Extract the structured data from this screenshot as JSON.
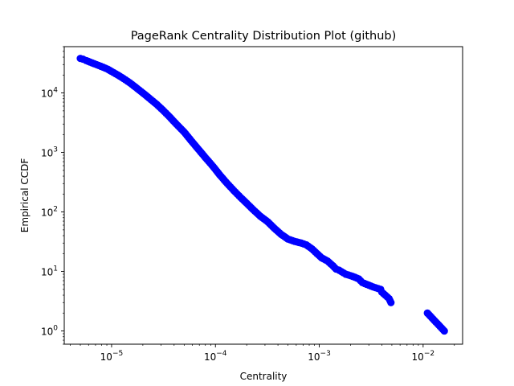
{
  "chart_data": {
    "type": "scatter",
    "title": "PageRank Centrality Distribution Plot (github)",
    "xlabel": "Centrality",
    "ylabel": "Empirical CCDF",
    "xscale": "log",
    "yscale": "log",
    "xlim": [
      3.5e-06,
      0.024
    ],
    "ylim": [
      0.6,
      60000
    ],
    "grid": false,
    "marker_color": "#0000ff",
    "x_ticks": [
      {
        "value": 1e-05,
        "base": "10",
        "exp": "−5"
      },
      {
        "value": 0.0001,
        "base": "10",
        "exp": "−4"
      },
      {
        "value": 0.001,
        "base": "10",
        "exp": "−3"
      },
      {
        "value": 0.01,
        "base": "10",
        "exp": "−2"
      }
    ],
    "y_ticks": [
      {
        "value": 1,
        "base": "10",
        "exp": "0"
      },
      {
        "value": 10,
        "base": "10",
        "exp": "1"
      },
      {
        "value": 100,
        "base": "10",
        "exp": "2"
      },
      {
        "value": 1000,
        "base": "10",
        "exp": "3"
      },
      {
        "value": 10000,
        "base": "10",
        "exp": "4"
      }
    ],
    "series": [
      {
        "x": [
          5e-06,
          5.3e-06,
          5.7e-06,
          6.2e-06,
          6.8e-06,
          7.5e-06,
          8.3e-06,
          9.2e-06,
          1e-05,
          1.15e-05,
          1.3e-05,
          1.5e-05,
          1.7e-05,
          2e-05,
          2.3e-05,
          2.7e-05,
          3.1e-05,
          3.6e-05,
          4.2e-05,
          5e-05,
          5.8e-05,
          6.8e-05,
          8e-05,
          9.5e-05,
          0.00011,
          0.00013,
          0.00015,
          0.000175,
          0.0002,
          0.00023,
          0.00027,
          0.00032,
          0.00037,
          0.00043,
          0.0005,
          0.00058,
          0.00067,
          0.00075,
          0.00085,
          0.00095,
          0.00105,
          0.0012,
          0.00135,
          0.00145,
          0.00155,
          0.0018,
          0.002,
          0.0022,
          0.0024,
          0.0026,
          0.0033,
          0.0039,
          0.004,
          0.0047,
          0.0049,
          0.011,
          0.016
        ],
        "y": [
          38000,
          37000,
          35000,
          33000,
          31000,
          29000,
          27000,
          25000,
          23000,
          20000,
          17500,
          14800,
          12500,
          10000,
          8200,
          6500,
          5200,
          4000,
          3000,
          2200,
          1600,
          1150,
          820,
          580,
          420,
          300,
          230,
          175,
          140,
          110,
          85,
          68,
          53,
          42,
          35,
          32,
          30,
          28,
          24,
          20,
          17,
          15,
          12.5,
          11,
          10.5,
          9,
          8.5,
          8,
          7.5,
          6.5,
          5.5,
          5.0,
          4.5,
          3.5,
          3.0,
          2.0,
          1.0
        ]
      }
    ]
  }
}
